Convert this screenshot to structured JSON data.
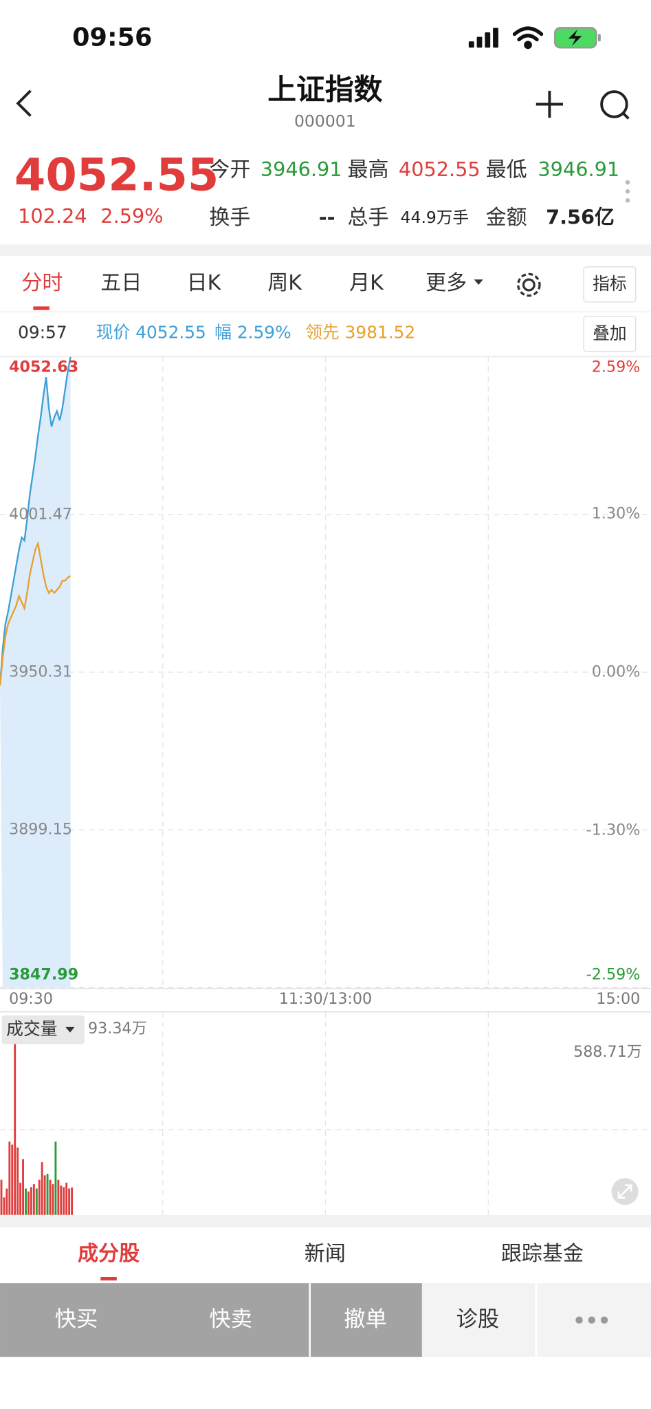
{
  "status_bar": {
    "time": "09:56"
  },
  "header": {
    "title": "上证指数",
    "code": "000001"
  },
  "quote": {
    "price": "4052.55",
    "change": "102.24",
    "change_pct": "2.59%",
    "fields": [
      {
        "label": "今开",
        "value": "3946.91"
      },
      {
        "label": "最高",
        "value": "4052.55"
      },
      {
        "label": "最低",
        "value": "3946.91"
      },
      {
        "label": "换手",
        "value": "--"
      },
      {
        "label": "总手",
        "value": "44.9万手"
      },
      {
        "label": "金额",
        "value": "7.56亿"
      }
    ]
  },
  "tabs": {
    "items": [
      "分时",
      "五日",
      "日K",
      "周K",
      "月K",
      "更多"
    ],
    "indicator_button": "指标"
  },
  "info_bar": {
    "time": "09:57",
    "current": "现价 4052.55",
    "change": "幅 2.59%",
    "lead": "领先 3981.52",
    "overlay_button": "叠加"
  },
  "chart_data": [
    {
      "type": "line",
      "xlim": [
        0,
        240
      ],
      "xticks": [
        {
          "value": 0,
          "label": "09:30"
        },
        {
          "value": 120,
          "label": "11:30/13:00"
        },
        {
          "value": 240,
          "label": "15:00"
        }
      ],
      "ylim": [
        3847.99,
        4052.63
      ],
      "yticks": [
        4052.63,
        4001.47,
        3950.31,
        3899.15,
        3847.99
      ],
      "y2lim": [
        -2.59,
        2.59
      ],
      "y2ticks": [
        {
          "value": 2.59,
          "label": "2.59%"
        },
        {
          "value": 1.3,
          "label": "1.30%"
        },
        {
          "value": 0,
          "label": "0.00%"
        },
        {
          "value": -1.3,
          "label": "-1.30%"
        },
        {
          "value": -2.59,
          "label": "-2.59%"
        }
      ],
      "x": [
        0,
        1,
        2,
        3,
        4,
        5,
        6,
        7,
        8,
        9,
        10,
        11,
        12,
        13,
        14,
        15,
        16,
        17,
        18,
        19,
        20,
        21,
        22,
        23,
        24,
        25,
        26
      ],
      "series": [
        {
          "color": "#3f9fd6",
          "area_color": "#dcecfa",
          "values": [
            3946,
            3958,
            3966,
            3970,
            3975,
            3980,
            3985,
            3990,
            3994,
            3993,
            4000,
            4008,
            4014,
            4020,
            4027,
            4033,
            4040,
            4046,
            4036,
            4030,
            4033,
            4035,
            4032,
            4036,
            4042,
            4048,
            4052.55
          ]
        },
        {
          "color": "#e8a030",
          "values": [
            3946,
            3955,
            3962,
            3966,
            3968,
            3970,
            3972,
            3975,
            3973,
            3971,
            3976,
            3982,
            3986,
            3990,
            3992,
            3987,
            3982,
            3978,
            3976,
            3977,
            3976,
            3977,
            3978,
            3980,
            3980,
            3981,
            3981.52
          ]
        }
      ],
      "grid": true
    },
    {
      "type": "bar",
      "title": "成交量",
      "current_volume": "93.34万",
      "xlim": [
        0,
        240
      ],
      "ylim": [
        0,
        588.71
      ],
      "yticks": [
        {
          "value": 588.71,
          "label": "588.71万"
        }
      ],
      "x": [
        0,
        1,
        2,
        3,
        4,
        5,
        6,
        7,
        8,
        9,
        10,
        11,
        12,
        13,
        14,
        15,
        16,
        17,
        18,
        19,
        20,
        21,
        22,
        23,
        24,
        25,
        26
      ],
      "values": [
        120,
        60,
        90,
        250,
        240,
        588.71,
        230,
        110,
        190,
        90,
        80,
        95,
        105,
        90,
        120,
        180,
        135,
        140,
        120,
        105,
        250,
        120,
        100,
        95,
        110,
        90,
        93.34
      ],
      "colors": [
        "#e03c3c",
        "#e03c3c",
        "#e03c3c",
        "#e03c3c",
        "#e03c3c",
        "#e03c3c",
        "#e03c3c",
        "#e03c3c",
        "#e03c3c",
        "#2a9a3a",
        "#e03c3c",
        "#e03c3c",
        "#e03c3c",
        "#2a9a3a",
        "#e03c3c",
        "#e03c3c",
        "#e03c3c",
        "#2a9a3a",
        "#e03c3c",
        "#e03c3c",
        "#2a9a3a",
        "#e03c3c",
        "#e03c3c",
        "#e03c3c",
        "#e03c3c",
        "#e03c3c",
        "#e03c3c"
      ]
    }
  ],
  "bottom_tabs": [
    "成分股",
    "新闻",
    "跟踪基金"
  ],
  "actions": [
    "快买",
    "快卖",
    "撤单",
    "诊股"
  ]
}
